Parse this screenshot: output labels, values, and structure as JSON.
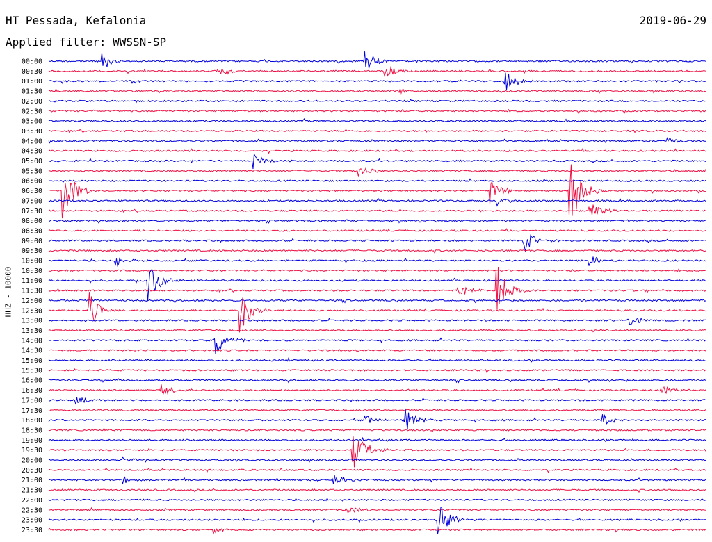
{
  "header": {
    "station": "HT Pessada, Kefalonia",
    "filter": "Applied filter: WWSSN-SP",
    "date": "2019-06-29"
  },
  "chart_data": {
    "type": "line",
    "title": "HT Pessada, Kefalonia",
    "ylabel": "HHZ - 10000",
    "date": "2019-06-29",
    "row_labels": [
      "00:00",
      "00:30",
      "01:00",
      "01:30",
      "02:00",
      "02:30",
      "03:00",
      "03:30",
      "04:00",
      "04:30",
      "05:00",
      "05:30",
      "06:00",
      "06:30",
      "07:00",
      "07:30",
      "08:00",
      "08:30",
      "09:00",
      "09:30",
      "10:00",
      "10:30",
      "11:00",
      "11:30",
      "12:00",
      "12:30",
      "13:00",
      "13:30",
      "14:00",
      "14:30",
      "15:00",
      "15:30",
      "16:00",
      "16:30",
      "17:00",
      "17:30",
      "18:00",
      "18:30",
      "19:00",
      "19:30",
      "20:00",
      "20:30",
      "21:00",
      "21:30",
      "22:00",
      "22:30",
      "23:00",
      "23:30"
    ],
    "colors": [
      "#0000dd",
      "#ee1144"
    ],
    "events": [
      {
        "row": 0,
        "t": 0.08,
        "amp": 1.0
      },
      {
        "row": 0,
        "t": 0.48,
        "amp": 1.3
      },
      {
        "row": 1,
        "t": 0.26,
        "amp": 0.5
      },
      {
        "row": 1,
        "t": 0.51,
        "amp": 0.9
      },
      {
        "row": 2,
        "t": 0.69,
        "amp": 1.6
      },
      {
        "row": 3,
        "t": 0.53,
        "amp": 0.3
      },
      {
        "row": 8,
        "t": 0.94,
        "amp": 0.3
      },
      {
        "row": 10,
        "t": 0.31,
        "amp": 0.9
      },
      {
        "row": 11,
        "t": 0.47,
        "amp": 0.8
      },
      {
        "row": 13,
        "t": 0.02,
        "amp": 3.5
      },
      {
        "row": 13,
        "t": 0.67,
        "amp": 1.5
      },
      {
        "row": 13,
        "t": 0.79,
        "amp": 5.0
      },
      {
        "row": 14,
        "t": 0.68,
        "amp": 0.5
      },
      {
        "row": 15,
        "t": 0.82,
        "amp": 1.2
      },
      {
        "row": 18,
        "t": 0.72,
        "amp": 1.5
      },
      {
        "row": 20,
        "t": 0.1,
        "amp": 0.7
      },
      {
        "row": 20,
        "t": 0.82,
        "amp": 0.6
      },
      {
        "row": 22,
        "t": 0.15,
        "amp": 2.5
      },
      {
        "row": 23,
        "t": 0.62,
        "amp": 0.8
      },
      {
        "row": 23,
        "t": 0.68,
        "amp": 3.0
      },
      {
        "row": 25,
        "t": 0.06,
        "amp": 2.2
      },
      {
        "row": 25,
        "t": 0.29,
        "amp": 2.5
      },
      {
        "row": 26,
        "t": 0.88,
        "amp": 0.7
      },
      {
        "row": 28,
        "t": 0.25,
        "amp": 1.8
      },
      {
        "row": 33,
        "t": 0.17,
        "amp": 0.9
      },
      {
        "row": 33,
        "t": 0.93,
        "amp": 0.7
      },
      {
        "row": 34,
        "t": 0.04,
        "amp": 0.5
      },
      {
        "row": 36,
        "t": 0.48,
        "amp": 0.5
      },
      {
        "row": 36,
        "t": 0.54,
        "amp": 1.5
      },
      {
        "row": 36,
        "t": 0.84,
        "amp": 0.8
      },
      {
        "row": 39,
        "t": 0.46,
        "amp": 2.5
      },
      {
        "row": 40,
        "t": 0.11,
        "amp": 0.4
      },
      {
        "row": 42,
        "t": 0.11,
        "amp": 0.4
      },
      {
        "row": 42,
        "t": 0.43,
        "amp": 0.6
      },
      {
        "row": 45,
        "t": 0.45,
        "amp": 0.6
      },
      {
        "row": 46,
        "t": 0.59,
        "amp": 2.2
      },
      {
        "row": 47,
        "t": 0.25,
        "amp": 0.4
      }
    ]
  }
}
